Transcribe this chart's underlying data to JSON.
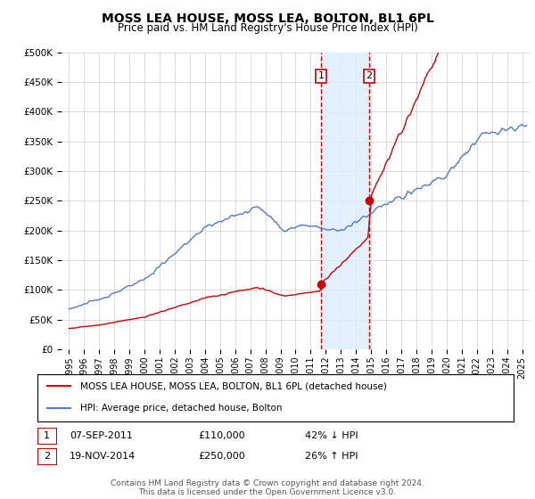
{
  "title": "MOSS LEA HOUSE, MOSS LEA, BOLTON, BL1 6PL",
  "subtitle": "Price paid vs. HM Land Registry's House Price Index (HPI)",
  "ylabel_ticks": [
    "£0",
    "£50K",
    "£100K",
    "£150K",
    "£200K",
    "£250K",
    "£300K",
    "£350K",
    "£400K",
    "£450K",
    "£500K"
  ],
  "ylim": [
    0,
    500000
  ],
  "xlim_start": 1994.5,
  "xlim_end": 2025.5,
  "transaction1_date": "07-SEP-2011",
  "transaction1_price": 110000,
  "transaction1_pct": "42% ↓ HPI",
  "transaction1_x": 2011.69,
  "transaction2_date": "19-NOV-2014",
  "transaction2_price": 250000,
  "transaction2_pct": "26% ↑ HPI",
  "transaction2_x": 2014.88,
  "legend_line1": "MOSS LEA HOUSE, MOSS LEA, BOLTON, BL1 6PL (detached house)",
  "legend_line2": "HPI: Average price, detached house, Bolton",
  "footnote": "Contains HM Land Registry data © Crown copyright and database right 2024.\nThis data is licensed under the Open Government Licence v3.0.",
  "red_line_color": "#cc0000",
  "blue_line_color": "#5577cc",
  "shade_color": "#ddeeff",
  "background_color": "#ffffff",
  "grid_color": "#cccccc",
  "title_fontsize": 10,
  "subtitle_fontsize": 8.5,
  "tick_fontsize": 7.5,
  "legend_fontsize": 7.5,
  "table_fontsize": 8,
  "footnote_fontsize": 6.5
}
